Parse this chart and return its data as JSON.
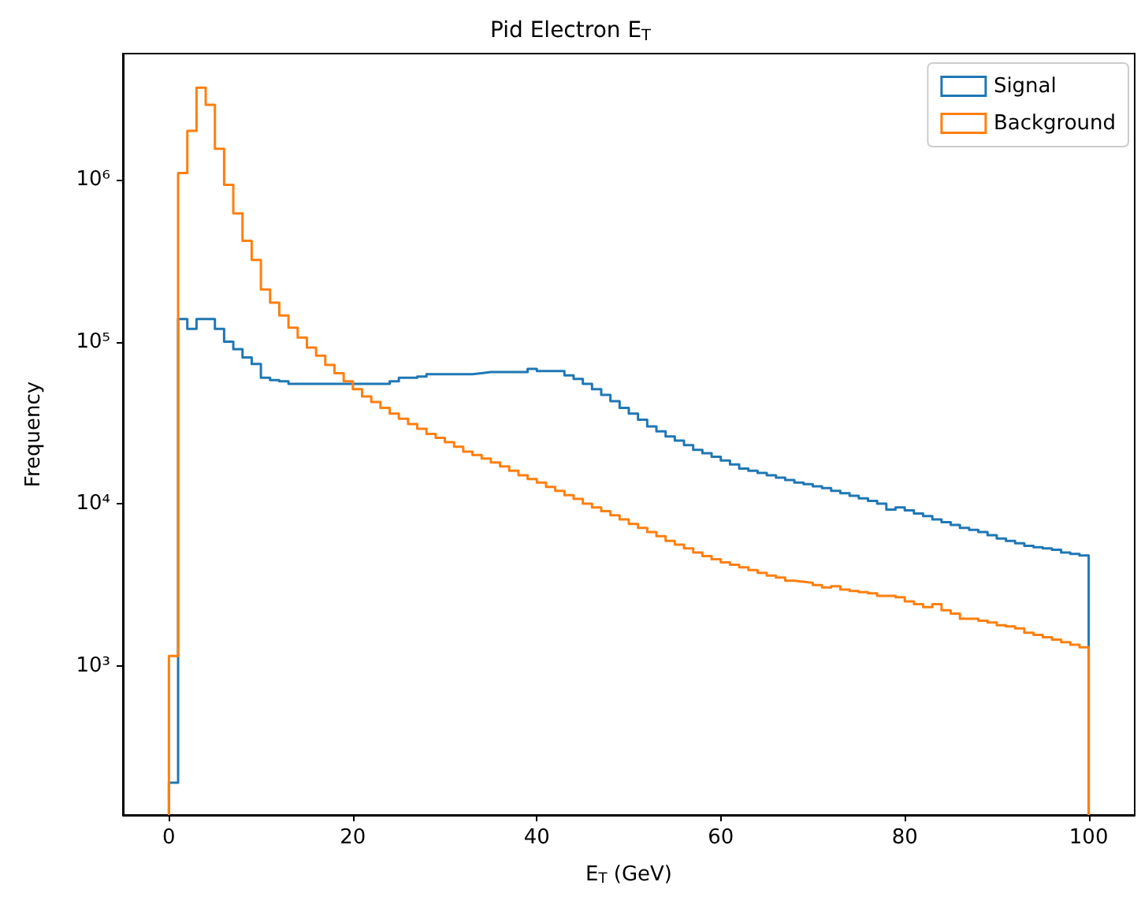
{
  "chart_data": {
    "type": "histogram",
    "title": "Pid Electron E$_{T}$",
    "xlabel": "E$_{T}$ (GeV)",
    "ylabel": "Frequency",
    "bins": [
      0,
      1,
      2,
      3,
      4,
      5,
      6,
      7,
      8,
      9,
      10,
      11,
      12,
      13,
      14,
      15,
      16,
      17,
      18,
      19,
      20,
      21,
      22,
      23,
      24,
      25,
      26,
      27,
      28,
      29,
      30,
      31,
      32,
      33,
      34,
      35,
      36,
      37,
      38,
      39,
      40,
      41,
      42,
      43,
      44,
      45,
      46,
      47,
      48,
      49,
      50,
      51,
      52,
      53,
      54,
      55,
      56,
      57,
      58,
      59,
      60,
      61,
      62,
      63,
      64,
      65,
      66,
      67,
      68,
      69,
      70,
      71,
      72,
      73,
      74,
      75,
      76,
      77,
      78,
      79,
      80,
      81,
      82,
      83,
      84,
      85,
      86,
      87,
      88,
      89,
      90,
      91,
      92,
      93,
      94,
      95,
      96,
      97,
      98,
      99,
      100
    ],
    "series": [
      {
        "name": "Signal",
        "color": "#1f77b4",
        "values": [
          190,
          138000,
          120000,
          138000,
          138000,
          120000,
          100000,
          90000,
          80000,
          73000,
          60000,
          58000,
          57000,
          55000,
          55000,
          55000,
          55000,
          55000,
          55000,
          55000,
          55000,
          55000,
          55000,
          55000,
          57000,
          60000,
          60000,
          61000,
          63000,
          63000,
          63000,
          63000,
          63000,
          64000,
          65000,
          65000,
          65000,
          65000,
          65000,
          68000,
          66000,
          66000,
          66000,
          62000,
          59000,
          55000,
          51000,
          47000,
          43000,
          39000,
          36000,
          33000,
          30000,
          28000,
          26000,
          24500,
          23000,
          21500,
          20500,
          19500,
          18500,
          17500,
          16500,
          16000,
          15500,
          15000,
          14500,
          14000,
          13500,
          13200,
          12800,
          12500,
          12000,
          11600,
          11200,
          10800,
          10400,
          10000,
          9200,
          9500,
          9100,
          8700,
          8400,
          8000,
          7700,
          7400,
          7100,
          6900,
          6700,
          6400,
          6100,
          5900,
          5700,
          5500,
          5400,
          5300,
          5200,
          5000,
          4900,
          4800
        ]
      },
      {
        "name": "Background",
        "color": "#ff7f0e",
        "values": [
          1150,
          1100000,
          2000000,
          3700000,
          2900000,
          1550000,
          930000,
          620000,
          420000,
          320000,
          210000,
          174000,
          145000,
          122000,
          106000,
          92000,
          82000,
          72000,
          64000,
          57000,
          51000,
          46000,
          42500,
          39000,
          36000,
          33500,
          31000,
          29000,
          27000,
          25500,
          24000,
          22500,
          21000,
          20000,
          19000,
          18000,
          17000,
          16000,
          15000,
          14200,
          13500,
          12700,
          12000,
          11300,
          10700,
          10000,
          9500,
          9000,
          8500,
          8000,
          7500,
          7100,
          6700,
          6300,
          5900,
          5600,
          5300,
          5000,
          4750,
          4550,
          4350,
          4200,
          4050,
          3900,
          3750,
          3600,
          3500,
          3350,
          3300,
          3250,
          3150,
          3050,
          3100,
          2950,
          2900,
          2850,
          2800,
          2700,
          2700,
          2650,
          2500,
          2400,
          2300,
          2400,
          2200,
          2100,
          1950,
          1950,
          1900,
          1850,
          1780,
          1750,
          1700,
          1600,
          1550,
          1500,
          1450,
          1400,
          1350,
          1300
        ]
      }
    ],
    "xlim": [
      -5,
      105
    ],
    "xticks": [
      0,
      20,
      40,
      60,
      80,
      100
    ],
    "ylim": [
      120,
      6000000
    ],
    "yticks": [
      {
        "value": 1000,
        "label": "10³"
      },
      {
        "value": 10000,
        "label": "10⁴"
      },
      {
        "value": 100000,
        "label": "10⁵"
      },
      {
        "value": 1000000,
        "label": "10⁶"
      }
    ],
    "log": "y",
    "grid": false,
    "legend": "top right"
  }
}
